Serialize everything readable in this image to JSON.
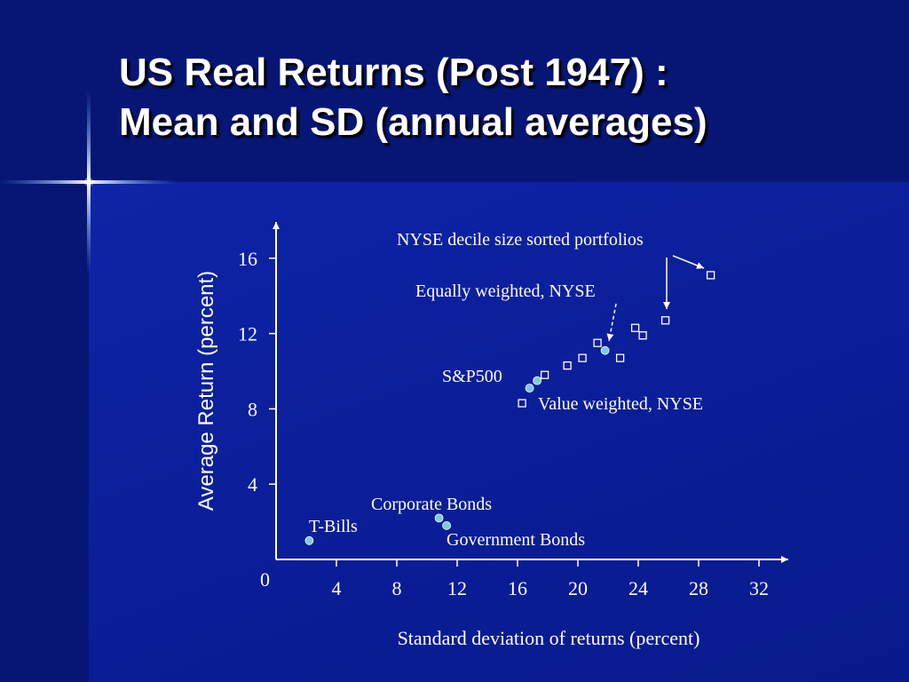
{
  "slide": {
    "title_line1": "US Real Returns (Post 1947) :",
    "title_line2": "Mean and SD (annual averages)"
  },
  "colors": {
    "background": "#0a1a8c",
    "title_band": "#071675",
    "text": "#ffffff",
    "marker_fill": "#7ec8e8"
  },
  "chart_data": {
    "type": "scatter",
    "title": "",
    "xlabel": "Standard deviation of returns (percent)",
    "ylabel": "Average Return (percent)",
    "xlim": [
      0,
      34
    ],
    "ylim": [
      0,
      17.5
    ],
    "x_ticks": [
      4,
      8,
      12,
      16,
      20,
      24,
      28,
      32
    ],
    "y_ticks": [
      4,
      8,
      12,
      16
    ],
    "origin_label": "0",
    "grid": false,
    "legend": "none",
    "series": [
      {
        "name": "NYSE decile size sorted portfolios",
        "marker": "open-square",
        "points": [
          {
            "x": 16.3,
            "y": 8.3
          },
          {
            "x": 17.8,
            "y": 9.8
          },
          {
            "x": 19.3,
            "y": 10.3
          },
          {
            "x": 20.3,
            "y": 10.7
          },
          {
            "x": 21.3,
            "y": 11.5
          },
          {
            "x": 22.8,
            "y": 10.7
          },
          {
            "x": 23.8,
            "y": 12.3
          },
          {
            "x": 24.3,
            "y": 11.9
          },
          {
            "x": 25.8,
            "y": 12.7
          },
          {
            "x": 28.8,
            "y": 15.1
          }
        ]
      },
      {
        "name": "",
        "marker": "filled-circle",
        "points": [
          {
            "label": "T-Bills",
            "x": 2.2,
            "y": 1.0
          },
          {
            "label": "Corporate Bonds",
            "x": 10.8,
            "y": 2.2
          },
          {
            "label": "Government Bonds",
            "x": 11.3,
            "y": 1.8
          },
          {
            "label": "S&P500",
            "x": 17.3,
            "y": 9.5
          },
          {
            "label": "Value weighted, NYSE",
            "x": 16.8,
            "y": 9.1
          },
          {
            "label": "Equally weighted, NYSE",
            "x": 21.8,
            "y": 11.1
          }
        ]
      }
    ],
    "annotations": [
      {
        "text": "NYSE decile size sorted portfolios"
      },
      {
        "text": "Equally weighted, NYSE"
      },
      {
        "text": "S&P500"
      },
      {
        "text": "Value weighted, NYSE"
      },
      {
        "text": "Corporate Bonds"
      },
      {
        "text": "T-Bills"
      },
      {
        "text": "Government Bonds"
      }
    ]
  }
}
